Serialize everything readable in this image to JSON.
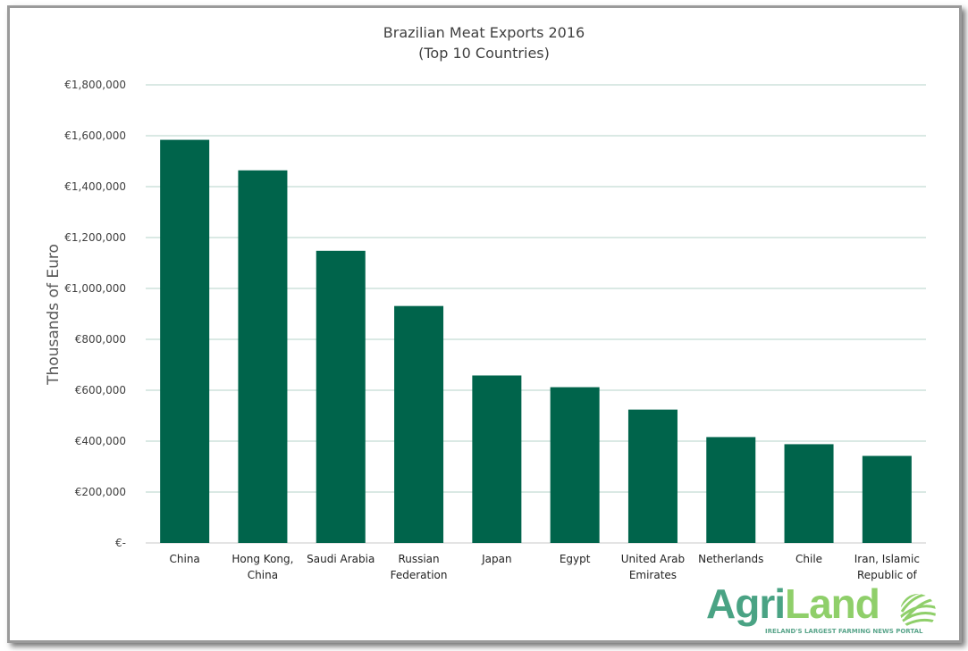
{
  "chart_data": {
    "type": "bar",
    "title": "Brazilian Meat Exports 2016",
    "subtitle": "(Top 10 Countries)",
    "xlabel": "",
    "ylabel": "Thousands of Euro",
    "ylim": [
      0,
      1800000
    ],
    "yticks": [
      0,
      200000,
      400000,
      600000,
      800000,
      1000000,
      1200000,
      1400000,
      1600000,
      1800000
    ],
    "ytick_labels": [
      "€-",
      "€200,000",
      "€400,000",
      "€600,000",
      "€800,000",
      "€1,000,000",
      "€1,200,000",
      "€1,400,000",
      "€1,600,000",
      "€1,800,000"
    ],
    "grid": true,
    "categories": [
      [
        "China"
      ],
      [
        "Hong Kong,",
        "China"
      ],
      [
        "Saudi Arabia"
      ],
      [
        "Russian",
        "Federation"
      ],
      [
        "Japan"
      ],
      [
        "Egypt"
      ],
      [
        "United Arab",
        "Emirates"
      ],
      [
        "Netherlands"
      ],
      [
        "Chile"
      ],
      [
        "Iran, Islamic",
        "Republic of"
      ]
    ],
    "values": [
      1584000,
      1464000,
      1148000,
      931000,
      658000,
      612000,
      524000,
      416000,
      388000,
      342000
    ],
    "colors": {
      "bar": "#00644b",
      "grid": "#b5d3c9",
      "text": "#404040"
    }
  },
  "logo": {
    "text_agri": "Agri",
    "text_land": "Land",
    "tagline": "IRELAND'S LARGEST FARMING NEWS PORTAL",
    "color_agri": "#4aa384",
    "color_land": "#8fcf6a"
  }
}
